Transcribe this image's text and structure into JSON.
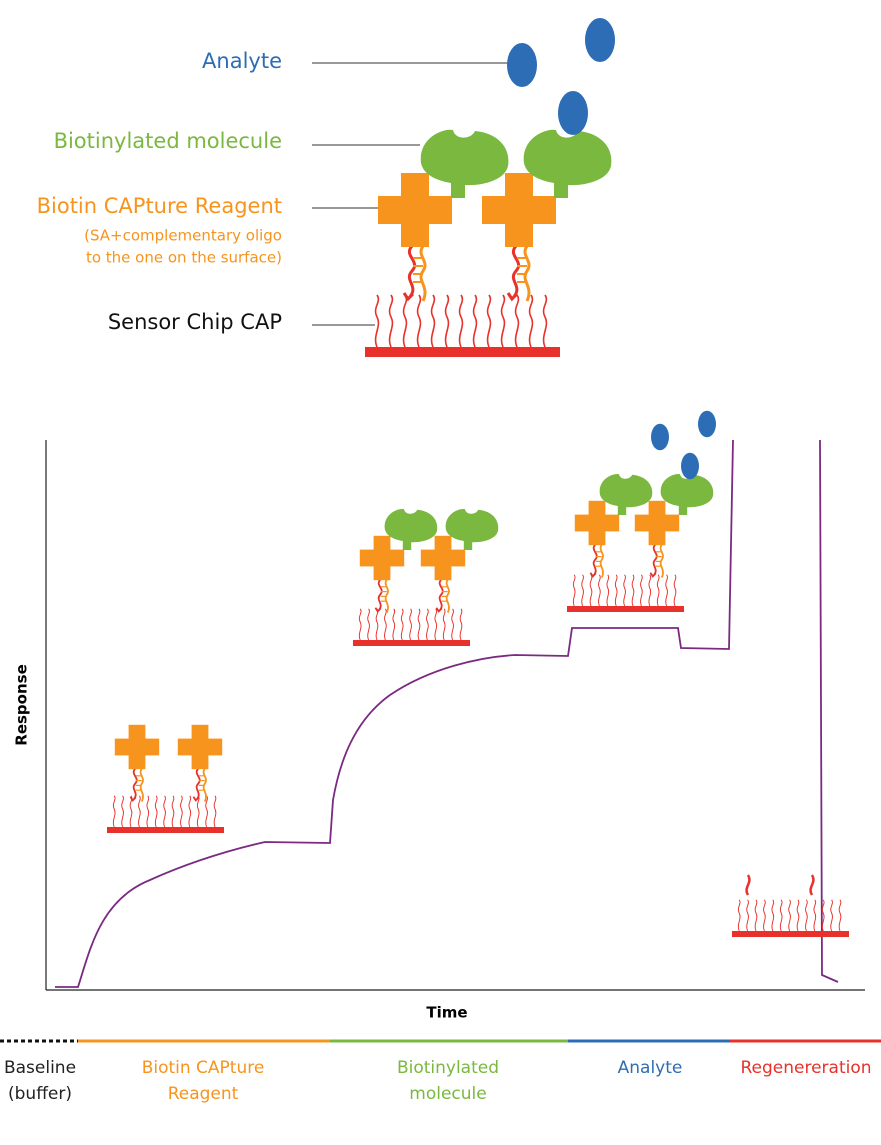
{
  "labels": {
    "analyte": "Analyte",
    "biotinylated_molecule": "Biotinylated molecule",
    "capture_reagent": "Biotin CAPture Reagent",
    "capture_note": [
      "(SA+complementary oligo",
      "to the one on the surface)"
    ],
    "sensor_chip": "Sensor Chip CAP"
  },
  "axes": {
    "y_label": "Response",
    "x_label": "Time"
  },
  "phases": [
    {
      "lines": [
        "Baseline",
        "(buffer)"
      ]
    },
    {
      "lines": [
        "Biotin CAPture",
        "Reagent"
      ]
    },
    {
      "lines": [
        "Biotinylated",
        "molecule"
      ]
    },
    {
      "lines": [
        "Analyte"
      ]
    },
    {
      "lines": [
        "Regenereration"
      ]
    }
  ]
}
